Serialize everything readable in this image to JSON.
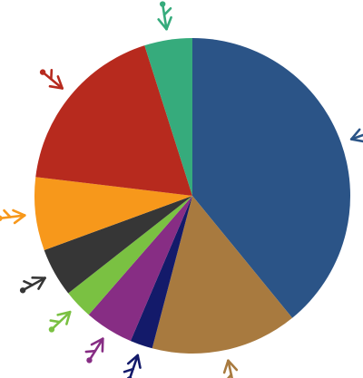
{
  "chart_data": {
    "type": "pie",
    "start": "top",
    "direction": "clockwise",
    "legend": "none",
    "slices": [
      {
        "value": 39.1,
        "color": "#2b5487"
      },
      {
        "value": 15.0,
        "color": "#a87a3f"
      },
      {
        "value": 2.3,
        "color": "#131a6a"
      },
      {
        "value": 5.0,
        "color": "#872d84"
      },
      {
        "value": 3.0,
        "color": "#7ac142"
      },
      {
        "value": 5.0,
        "color": "#363636"
      },
      {
        "value": 7.5,
        "color": "#f7981b"
      },
      {
        "value": 18.2,
        "color": "#b72a1e"
      },
      {
        "value": 4.9,
        "color": "#36ab7c"
      }
    ]
  }
}
